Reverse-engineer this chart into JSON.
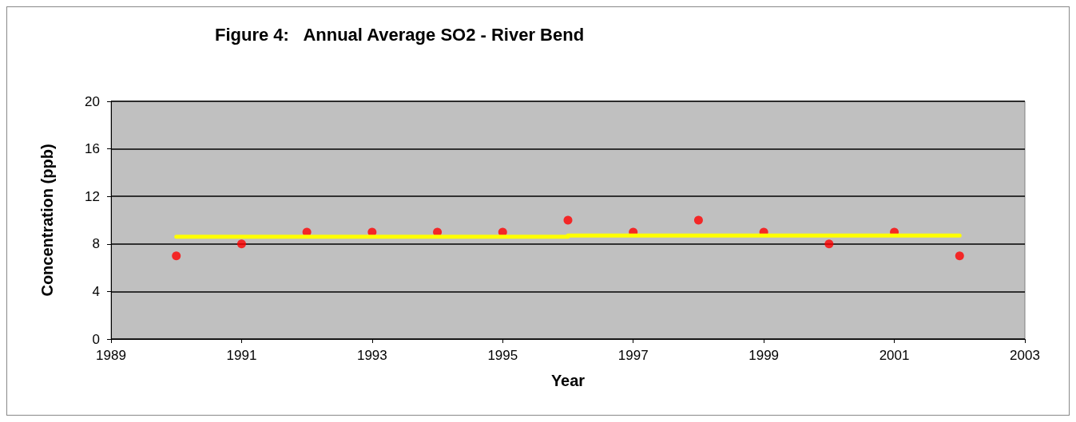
{
  "chart_data": {
    "type": "scatter",
    "title": "Figure 4:   Annual Average SO2 - River Bend",
    "xlabel": "Year",
    "ylabel": "Concentration (ppb)",
    "xlim": [
      1989,
      2003
    ],
    "xticks": [
      1989,
      1991,
      1993,
      1995,
      1997,
      1999,
      2001,
      2003
    ],
    "ylim": [
      0,
      20
    ],
    "yticks": [
      0,
      4,
      8,
      12,
      16,
      20
    ],
    "grid": "y",
    "series": [
      {
        "color": "#ff0000",
        "marker": "circle",
        "x": [
          1990,
          1991,
          1992,
          1993,
          1994,
          1995,
          1996,
          1997,
          1998,
          1999,
          2000,
          2001,
          2002
        ],
        "values": [
          7,
          8,
          9,
          9,
          9,
          9,
          10,
          9,
          10,
          9,
          8,
          9,
          7
        ]
      },
      {
        "type": "line",
        "color": "#ffff00",
        "marker": "none",
        "line_style": "solid",
        "x": [
          1990,
          1996,
          1996,
          2002
        ],
        "values": [
          8.6,
          8.6,
          8.7,
          8.7
        ]
      }
    ]
  }
}
